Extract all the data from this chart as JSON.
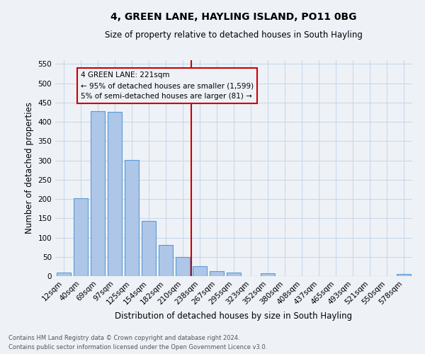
{
  "title1": "4, GREEN LANE, HAYLING ISLAND, PO11 0BG",
  "title2": "Size of property relative to detached houses in South Hayling",
  "xlabel": "Distribution of detached houses by size in South Hayling",
  "ylabel": "Number of detached properties",
  "bin_labels": [
    "12sqm",
    "40sqm",
    "69sqm",
    "97sqm",
    "125sqm",
    "154sqm",
    "182sqm",
    "210sqm",
    "238sqm",
    "267sqm",
    "295sqm",
    "323sqm",
    "352sqm",
    "380sqm",
    "408sqm",
    "437sqm",
    "465sqm",
    "493sqm",
    "521sqm",
    "550sqm",
    "578sqm"
  ],
  "bin_values": [
    10,
    202,
    428,
    426,
    301,
    144,
    80,
    50,
    25,
    13,
    10,
    0,
    7,
    0,
    0,
    0,
    0,
    0,
    0,
    0,
    5
  ],
  "bar_color": "#aec6e8",
  "bar_edge_color": "#5b9bd5",
  "grid_color": "#c8d8ea",
  "property_line_x": 7.5,
  "vline_color": "#cc0000",
  "annotation_text": "4 GREEN LANE: 221sqm\n← 95% of detached houses are smaller (1,599)\n5% of semi-detached houses are larger (81) →",
  "annotation_box_color": "#cc0000",
  "footnote1": "Contains HM Land Registry data © Crown copyright and database right 2024.",
  "footnote2": "Contains public sector information licensed under the Open Government Licence v3.0.",
  "ylim": [
    0,
    560
  ],
  "yticks": [
    0,
    50,
    100,
    150,
    200,
    250,
    300,
    350,
    400,
    450,
    500,
    550
  ],
  "bg_color": "#eef2f7"
}
